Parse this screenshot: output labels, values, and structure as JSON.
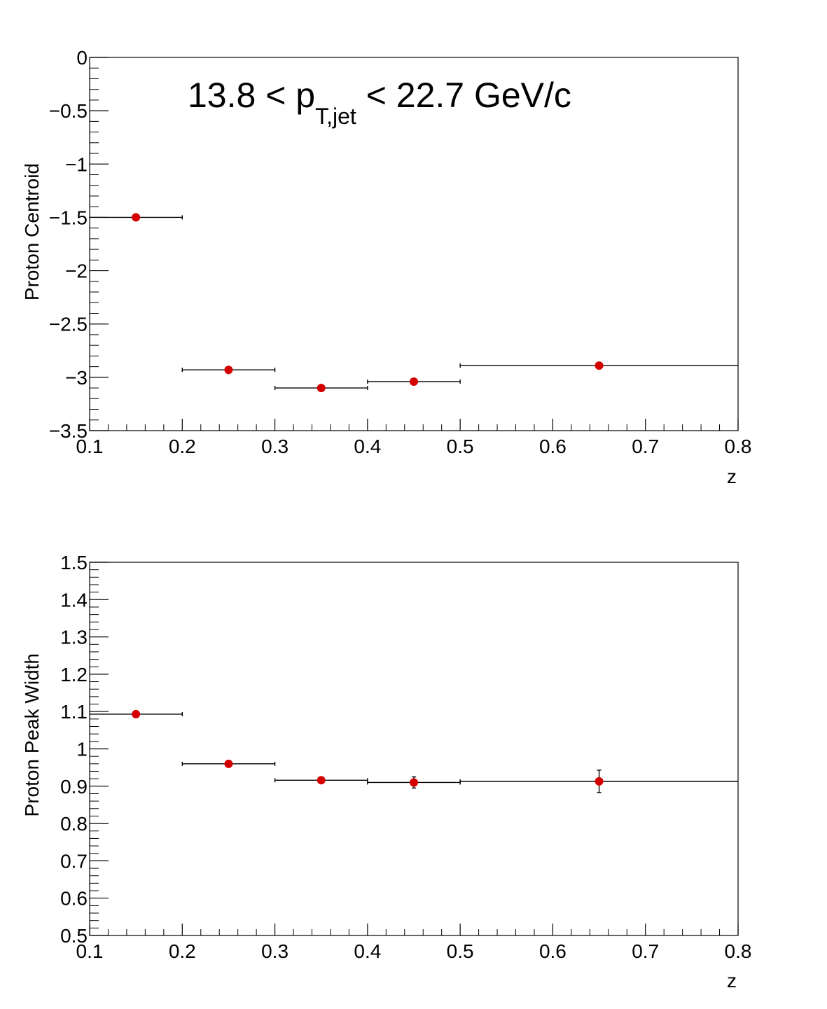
{
  "chart_data": [
    {
      "type": "scatter",
      "title": "",
      "annotation": {
        "main": "13.8 < p",
        "subscript": "T,jet",
        "rest": " < 22.7 GeV/c"
      },
      "xlabel": "z",
      "ylabel": "Proton Centroid",
      "xlim": [
        0.1,
        0.8
      ],
      "ylim": [
        -3.5,
        0
      ],
      "x_ticks": [
        0.1,
        0.2,
        0.3,
        0.4,
        0.5,
        0.6,
        0.7,
        0.8
      ],
      "x_tick_labels": [
        "0.1",
        "0.2",
        "0.3",
        "0.4",
        "0.5",
        "0.6",
        "0.7",
        "0.8"
      ],
      "y_ticks": [
        0,
        -0.5,
        -1,
        -1.5,
        -2,
        -2.5,
        -3,
        -3.5
      ],
      "y_tick_labels": [
        "0",
        "−0.5",
        "−1",
        "−1.5",
        "−2",
        "−2.5",
        "−3",
        "−3.5"
      ],
      "marker_color": "#d40000",
      "points": [
        {
          "x": 0.15,
          "y": -1.5,
          "xlow": 0.1,
          "xhigh": 0.2,
          "yerr": 0
        },
        {
          "x": 0.25,
          "y": -2.93,
          "xlow": 0.2,
          "xhigh": 0.3,
          "yerr": 0
        },
        {
          "x": 0.35,
          "y": -3.1,
          "xlow": 0.3,
          "xhigh": 0.4,
          "yerr": 0
        },
        {
          "x": 0.45,
          "y": -3.04,
          "xlow": 0.4,
          "xhigh": 0.5,
          "yerr": 0
        },
        {
          "x": 0.65,
          "y": -2.89,
          "xlow": 0.5,
          "xhigh": 0.8,
          "yerr": 0
        }
      ]
    },
    {
      "type": "scatter",
      "title": "",
      "xlabel": "z",
      "ylabel": "Proton Peak Width",
      "xlim": [
        0.1,
        0.8
      ],
      "ylim": [
        0.5,
        1.5
      ],
      "x_ticks": [
        0.1,
        0.2,
        0.3,
        0.4,
        0.5,
        0.6,
        0.7,
        0.8
      ],
      "x_tick_labels": [
        "0.1",
        "0.2",
        "0.3",
        "0.4",
        "0.5",
        "0.6",
        "0.7",
        "0.8"
      ],
      "y_ticks": [
        0.5,
        0.6,
        0.7,
        0.8,
        0.9,
        1.0,
        1.1,
        1.2,
        1.3,
        1.4,
        1.5
      ],
      "y_tick_labels": [
        "0.5",
        "0.6",
        "0.7",
        "0.8",
        "0.9",
        "1",
        "1.1",
        "1.2",
        "1.3",
        "1.4",
        "1.5"
      ],
      "marker_color": "#d40000",
      "points": [
        {
          "x": 0.15,
          "y": 1.093,
          "xlow": 0.1,
          "xhigh": 0.2,
          "yerr": 0.003
        },
        {
          "x": 0.25,
          "y": 0.96,
          "xlow": 0.2,
          "xhigh": 0.3,
          "yerr": 0.003
        },
        {
          "x": 0.35,
          "y": 0.916,
          "xlow": 0.3,
          "xhigh": 0.4,
          "yerr": 0.004
        },
        {
          "x": 0.45,
          "y": 0.91,
          "xlow": 0.4,
          "xhigh": 0.5,
          "yerr": 0.015
        },
        {
          "x": 0.65,
          "y": 0.913,
          "xlow": 0.5,
          "xhigh": 0.8,
          "yerr": 0.03
        }
      ]
    }
  ]
}
